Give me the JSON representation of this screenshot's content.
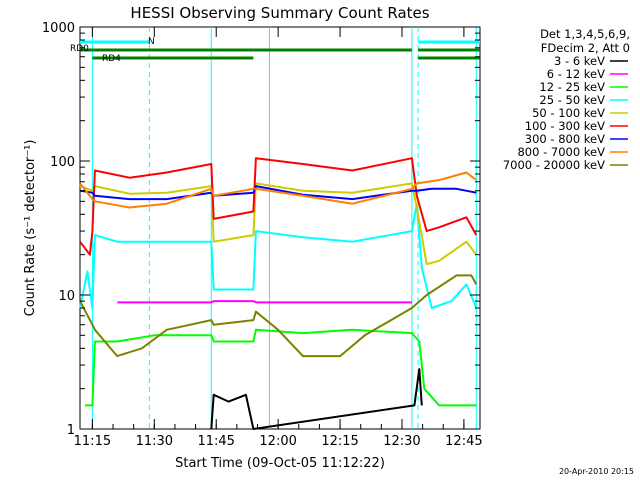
{
  "chart_data": {
    "type": "line",
    "title": "HESSI Observing Summary Count Rates",
    "xlabel": "Start Time (09-Oct-05 11:12:22)",
    "ylabel": "Count Rate (s⁻¹ detector⁻¹)",
    "ylog": true,
    "ylim": [
      1,
      1000
    ],
    "xlim_minutes": [
      11.2,
      12.815
    ],
    "x_ticks": [
      "11:15",
      "11:30",
      "11:45",
      "12:00",
      "12:15",
      "12:30",
      "12:45"
    ],
    "y_ticks": [
      "1",
      "10",
      "100",
      "1000"
    ],
    "grid": false,
    "legend_position": "right",
    "legend_header": [
      "Det 1,3,4,5,6,9,",
      "FDecim 2, Att 0"
    ],
    "footer_date": "20-Apr-2010 20:15",
    "flags": [
      {
        "label": "N",
        "color": "#00ffff",
        "segments": [
          [
            11.2,
            11.48
          ],
          [
            12.565,
            12.815
          ]
        ]
      },
      {
        "label": "RD0",
        "color": "#008000",
        "segments": [
          [
            11.2,
            11.73
          ],
          [
            11.73,
            11.9
          ],
          [
            11.9,
            12.54
          ],
          [
            12.565,
            12.815
          ]
        ]
      },
      {
        "label": "RD4",
        "color": "#008000",
        "segments": [
          [
            11.25,
            11.73
          ],
          [
            11.73,
            11.9
          ],
          [
            12.565,
            12.815
          ]
        ]
      }
    ],
    "night_markers": [
      11.25,
      11.73,
      11.965,
      12.54,
      12.8
    ],
    "saa_markers": [
      11.48,
      12.565
    ],
    "series": [
      {
        "name": "3 - 6 keV",
        "color": "#000000",
        "points": [
          [
            11.73,
            1
          ],
          [
            11.74,
            1.8
          ],
          [
            11.8,
            1.6
          ],
          [
            11.87,
            1.8
          ],
          [
            11.9,
            1
          ],
          [
            12.55,
            1.5
          ],
          [
            12.57,
            2.8
          ],
          [
            12.58,
            1.5
          ]
        ]
      },
      {
        "name": "6 - 12 keV",
        "color": "#ff00ff",
        "points": [
          [
            11.35,
            8.8
          ],
          [
            11.5,
            8.8
          ],
          [
            11.73,
            8.8
          ],
          [
            11.74,
            9.0
          ],
          [
            11.9,
            9.0
          ],
          [
            11.91,
            8.8
          ],
          [
            12.3,
            8.8
          ],
          [
            12.54,
            8.8
          ]
        ]
      },
      {
        "name": "12 - 25 keV",
        "color": "#00ff00",
        "points": [
          [
            11.22,
            1.5
          ],
          [
            11.25,
            1.5
          ],
          [
            11.26,
            4.5
          ],
          [
            11.35,
            4.5
          ],
          [
            11.5,
            5.0
          ],
          [
            11.73,
            5.0
          ],
          [
            11.74,
            4.5
          ],
          [
            11.9,
            4.5
          ],
          [
            11.91,
            5.5
          ],
          [
            12.1,
            5.2
          ],
          [
            12.3,
            5.5
          ],
          [
            12.54,
            5.2
          ],
          [
            12.57,
            4.5
          ],
          [
            12.59,
            2
          ],
          [
            12.65,
            1.5
          ],
          [
            12.8,
            1.5
          ]
        ]
      },
      {
        "name": "25 - 50 keV",
        "color": "#00ffff",
        "points": [
          [
            11.2,
            8
          ],
          [
            11.23,
            15
          ],
          [
            11.25,
            8
          ],
          [
            11.26,
            28
          ],
          [
            11.35,
            25
          ],
          [
            11.5,
            25
          ],
          [
            11.73,
            25
          ],
          [
            11.74,
            11
          ],
          [
            11.9,
            11
          ],
          [
            11.91,
            30
          ],
          [
            12.1,
            27
          ],
          [
            12.3,
            25
          ],
          [
            12.54,
            30
          ],
          [
            12.56,
            48
          ],
          [
            12.58,
            16
          ],
          [
            12.62,
            8
          ],
          [
            12.7,
            9
          ],
          [
            12.76,
            12
          ],
          [
            12.8,
            8
          ]
        ]
      },
      {
        "name": "50 - 100 keV",
        "color": "#cccc00",
        "points": [
          [
            11.2,
            65
          ],
          [
            11.25,
            60
          ],
          [
            11.26,
            65
          ],
          [
            11.4,
            57
          ],
          [
            11.55,
            58
          ],
          [
            11.73,
            65
          ],
          [
            11.74,
            25
          ],
          [
            11.9,
            28
          ],
          [
            11.91,
            68
          ],
          [
            12.1,
            60
          ],
          [
            12.3,
            58
          ],
          [
            12.54,
            68
          ],
          [
            12.56,
            45
          ],
          [
            12.6,
            17
          ],
          [
            12.65,
            18
          ],
          [
            12.76,
            25
          ],
          [
            12.8,
            20
          ]
        ]
      },
      {
        "name": "100 - 300 keV",
        "color": "#ff0000",
        "points": [
          [
            11.2,
            25
          ],
          [
            11.24,
            20
          ],
          [
            11.25,
            30
          ],
          [
            11.26,
            85
          ],
          [
            11.4,
            75
          ],
          [
            11.55,
            82
          ],
          [
            11.73,
            95
          ],
          [
            11.74,
            37
          ],
          [
            11.9,
            42
          ],
          [
            11.91,
            105
          ],
          [
            12.1,
            95
          ],
          [
            12.3,
            85
          ],
          [
            12.54,
            105
          ],
          [
            12.56,
            55
          ],
          [
            12.6,
            30
          ],
          [
            12.65,
            32
          ],
          [
            12.76,
            38
          ],
          [
            12.8,
            28
          ]
        ]
      },
      {
        "name": "300 - 800 keV",
        "color": "#0000ff",
        "points": [
          [
            11.2,
            60
          ],
          [
            11.25,
            58
          ],
          [
            11.26,
            55
          ],
          [
            11.4,
            52
          ],
          [
            11.55,
            52
          ],
          [
            11.73,
            58
          ],
          [
            11.74,
            55
          ],
          [
            11.9,
            58
          ],
          [
            11.91,
            65
          ],
          [
            12.1,
            56
          ],
          [
            12.3,
            52
          ],
          [
            12.54,
            60
          ],
          [
            12.56,
            60
          ],
          [
            12.62,
            62
          ],
          [
            12.72,
            62
          ],
          [
            12.8,
            58
          ]
        ]
      },
      {
        "name": "800 - 7000 keV",
        "color": "#ff8000",
        "points": [
          [
            11.2,
            68
          ],
          [
            11.25,
            52
          ],
          [
            11.26,
            50
          ],
          [
            11.4,
            45
          ],
          [
            11.55,
            48
          ],
          [
            11.73,
            62
          ],
          [
            11.74,
            55
          ],
          [
            11.9,
            62
          ],
          [
            11.91,
            62
          ],
          [
            12.1,
            55
          ],
          [
            12.3,
            48
          ],
          [
            12.54,
            62
          ],
          [
            12.56,
            68
          ],
          [
            12.65,
            72
          ],
          [
            12.76,
            82
          ],
          [
            12.8,
            72
          ]
        ]
      },
      {
        "name": "7000 - 20000 keV",
        "color": "#808000",
        "points": [
          [
            11.2,
            9
          ],
          [
            11.25,
            6
          ],
          [
            11.26,
            5.5
          ],
          [
            11.35,
            3.5
          ],
          [
            11.45,
            4.0
          ],
          [
            11.55,
            5.5
          ],
          [
            11.73,
            6.5
          ],
          [
            11.74,
            6.0
          ],
          [
            11.9,
            6.5
          ],
          [
            11.91,
            7.5
          ],
          [
            12.0,
            5.5
          ],
          [
            12.1,
            3.5
          ],
          [
            12.25,
            3.5
          ],
          [
            12.35,
            5.0
          ],
          [
            12.54,
            8
          ],
          [
            12.6,
            10
          ],
          [
            12.72,
            14
          ],
          [
            12.78,
            14
          ],
          [
            12.8,
            12
          ]
        ]
      }
    ]
  }
}
